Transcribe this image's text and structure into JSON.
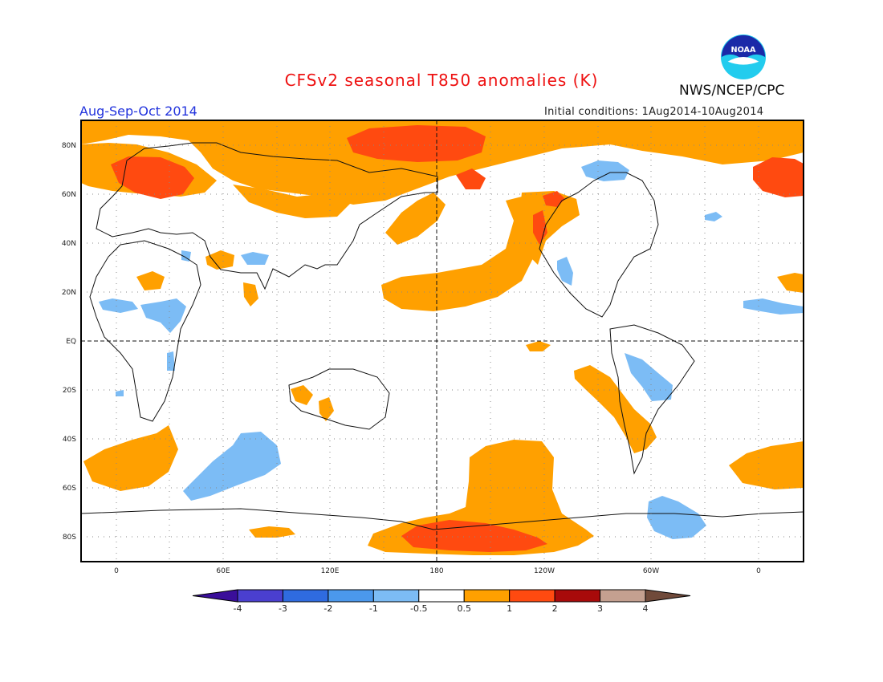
{
  "header": {
    "title": "CFSv2 seasonal T850 anomalies (K)",
    "agency": "NWS/NCEP/CPC",
    "logo_text": "NOAA",
    "season": "Aug-Sep-Oct 2014",
    "initial_conditions": "Initial conditions: 1Aug2014-10Aug2014"
  },
  "axes": {
    "lat_labels": [
      "80N",
      "60N",
      "40N",
      "20N",
      "EQ",
      "20S",
      "40S",
      "60S",
      "80S"
    ],
    "lon_labels": [
      "0",
      "60E",
      "120E",
      "180",
      "120W",
      "60W",
      "0"
    ]
  },
  "colorbar": {
    "labels": [
      "-4",
      "-3",
      "-2",
      "-1",
      "-0.5",
      "0.5",
      "1",
      "2",
      "3",
      "4"
    ],
    "colors": [
      "#3a0e9a",
      "#4a3fcf",
      "#2f6be0",
      "#4b98ec",
      "#7cbcf5",
      "#ffffff",
      "#ffa000",
      "#ff4a10",
      "#a80a0a",
      "#c4a090",
      "#704a3a"
    ]
  },
  "colors": {
    "warm_light": "#ffa000",
    "warm": "#ff4a10",
    "cool": "#7cbcf5",
    "title": "#ee1111",
    "season": "#2233dd"
  }
}
